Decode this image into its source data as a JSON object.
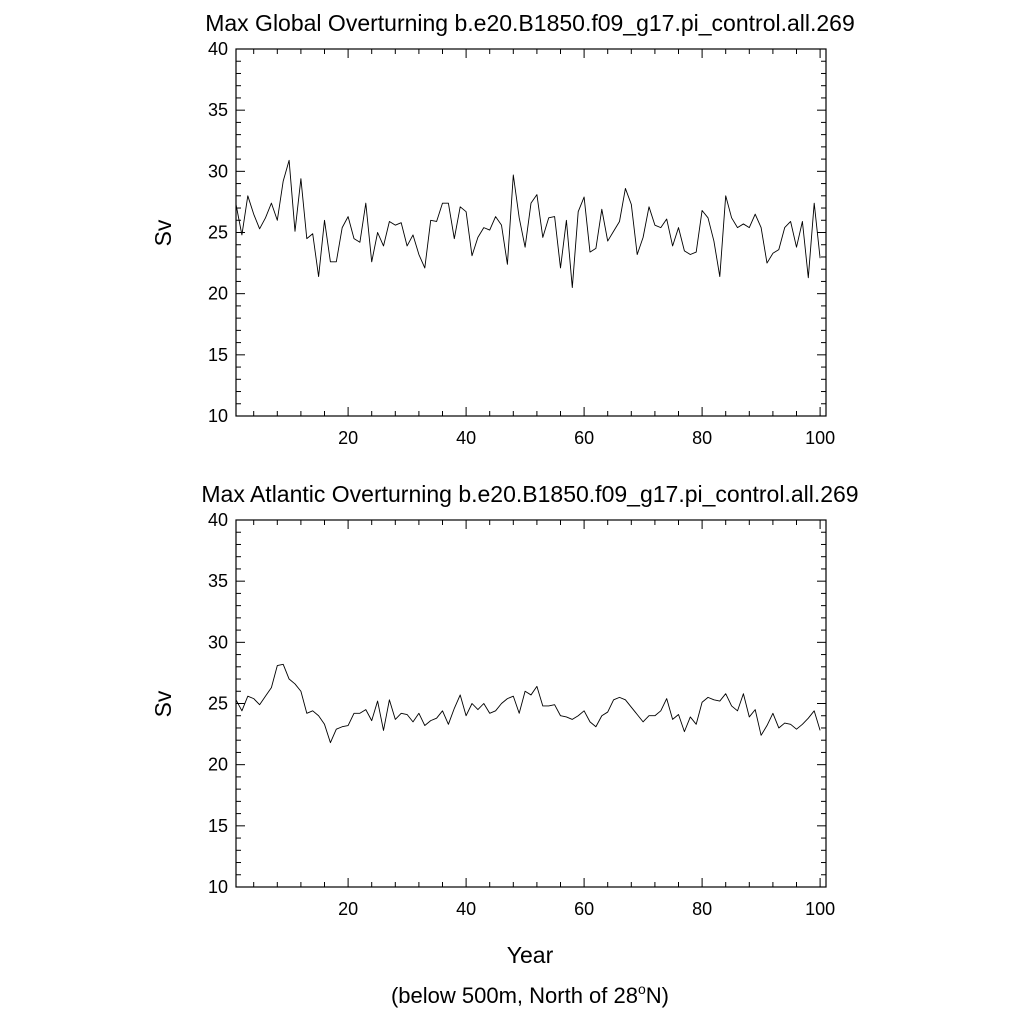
{
  "chart_data": [
    {
      "type": "line",
      "title": "Max Global Overturning b.e20.B1850.f09_g17.pi_control.all.269",
      "ylabel": "Sv",
      "xlim": [
        1,
        101
      ],
      "ylim": [
        10,
        40
      ],
      "xticks": [
        20,
        40,
        60,
        80,
        100
      ],
      "yticks": [
        10,
        15,
        20,
        25,
        30,
        35,
        40
      ],
      "x_start": 1,
      "values": [
        27.3,
        24.8,
        28.0,
        26.5,
        25.3,
        26.2,
        27.4,
        26.0,
        29.2,
        30.9,
        25.1,
        29.4,
        24.5,
        24.9,
        21.4,
        26.0,
        22.6,
        22.6,
        25.4,
        26.3,
        24.5,
        24.2,
        27.4,
        22.6,
        25.0,
        23.9,
        25.9,
        25.6,
        25.8,
        23.9,
        24.8,
        23.2,
        22.1,
        26.0,
        25.9,
        27.4,
        27.4,
        24.5,
        27.1,
        26.7,
        23.1,
        24.6,
        25.4,
        25.2,
        26.3,
        25.6,
        22.4,
        29.7,
        26.2,
        23.8,
        27.4,
        28.1,
        24.6,
        26.2,
        26.3,
        22.1,
        26.0,
        20.5,
        26.7,
        27.9,
        23.4,
        23.7,
        26.9,
        24.3,
        25.1,
        25.9,
        28.6,
        27.3,
        23.2,
        24.6,
        27.1,
        25.6,
        25.4,
        26.1,
        23.9,
        25.4,
        23.5,
        23.2,
        23.4,
        26.8,
        26.2,
        24.3,
        21.4,
        28.0,
        26.2,
        25.4,
        25.7,
        25.4,
        26.5,
        25.4,
        22.5,
        23.3,
        23.6,
        25.4,
        25.9,
        23.8,
        25.9,
        21.3,
        27.4,
        22.9
      ]
    },
    {
      "type": "line",
      "title": "Max Atlantic Overturning b.e20.B1850.f09_g17.pi_control.all.269",
      "ylabel": "Sv",
      "xlabel": "Year",
      "xlim": [
        1,
        101
      ],
      "ylim": [
        10,
        40
      ],
      "xticks": [
        20,
        40,
        60,
        80,
        100
      ],
      "yticks": [
        10,
        15,
        20,
        25,
        30,
        35,
        40
      ],
      "x_start": 1,
      "values": [
        25.3,
        24.4,
        25.6,
        25.4,
        24.9,
        25.6,
        26.3,
        28.1,
        28.2,
        27.0,
        26.6,
        26.0,
        24.2,
        24.4,
        24.0,
        23.3,
        21.8,
        22.9,
        23.1,
        23.2,
        24.2,
        24.2,
        24.5,
        23.6,
        25.2,
        22.8,
        25.3,
        23.7,
        24.2,
        24.1,
        23.5,
        24.2,
        23.2,
        23.6,
        23.8,
        24.4,
        23.3,
        24.6,
        25.7,
        24.0,
        25.0,
        24.5,
        25.0,
        24.2,
        24.4,
        25.0,
        25.4,
        25.6,
        24.2,
        26.0,
        25.7,
        26.4,
        24.8,
        24.8,
        24.9,
        24.0,
        23.9,
        23.7,
        24.0,
        24.4,
        23.5,
        23.1,
        24.0,
        24.3,
        25.3,
        25.5,
        25.3,
        24.7,
        24.1,
        23.5,
        24.0,
        24.0,
        24.4,
        25.4,
        23.7,
        24.1,
        22.7,
        23.9,
        23.3,
        25.1,
        25.5,
        25.3,
        25.2,
        25.8,
        24.8,
        24.4,
        25.8,
        23.9,
        24.5,
        22.4,
        23.2,
        24.2,
        23.0,
        23.4,
        23.3,
        22.9,
        23.3,
        23.8,
        24.4,
        22.8
      ]
    }
  ],
  "footnote": {
    "prefix": "(below 500m, North of 28",
    "superscript": "o",
    "suffix": "N)"
  }
}
